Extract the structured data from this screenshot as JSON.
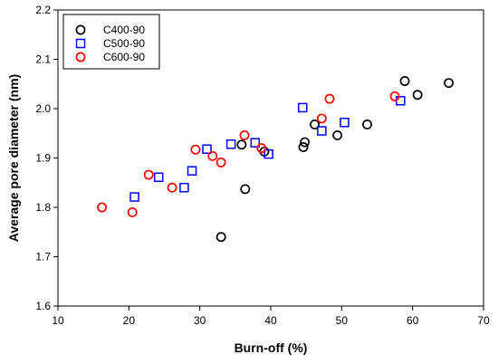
{
  "chart_data": {
    "type": "scatter",
    "title": "",
    "xlabel": "Burn-off (%)",
    "ylabel": "Average pore diameter (nm)",
    "xlim": [
      10,
      70
    ],
    "ylim": [
      1.6,
      2.2
    ],
    "xticks": [
      "10",
      "20",
      "30",
      "40",
      "50",
      "60",
      "70"
    ],
    "yticks": [
      "1.6",
      "1.7",
      "1.8",
      "1.9",
      "2.0",
      "2.1",
      "2.2"
    ],
    "grid": false,
    "legend_position": "top-left",
    "series": [
      {
        "name": "C400-90",
        "marker": "circle",
        "color": "#000000",
        "points": [
          {
            "x": 33.0,
            "y": 1.74
          },
          {
            "x": 35.9,
            "y": 1.927
          },
          {
            "x": 36.4,
            "y": 1.837
          },
          {
            "x": 39.1,
            "y": 1.913
          },
          {
            "x": 44.6,
            "y": 1.922
          },
          {
            "x": 44.8,
            "y": 1.932
          },
          {
            "x": 46.2,
            "y": 1.968
          },
          {
            "x": 49.4,
            "y": 1.946
          },
          {
            "x": 53.6,
            "y": 1.968
          },
          {
            "x": 58.9,
            "y": 2.056
          },
          {
            "x": 60.7,
            "y": 2.028
          },
          {
            "x": 65.1,
            "y": 2.052
          }
        ]
      },
      {
        "name": "C500-90",
        "marker": "square",
        "color": "#0000ff",
        "points": [
          {
            "x": 20.8,
            "y": 1.821
          },
          {
            "x": 24.2,
            "y": 1.861
          },
          {
            "x": 27.8,
            "y": 1.84
          },
          {
            "x": 28.9,
            "y": 1.874
          },
          {
            "x": 31.0,
            "y": 1.918
          },
          {
            "x": 34.4,
            "y": 1.928
          },
          {
            "x": 37.8,
            "y": 1.931
          },
          {
            "x": 39.7,
            "y": 1.908
          },
          {
            "x": 44.5,
            "y": 2.002
          },
          {
            "x": 47.2,
            "y": 1.955
          },
          {
            "x": 50.4,
            "y": 1.972
          },
          {
            "x": 58.3,
            "y": 2.016
          }
        ]
      },
      {
        "name": "C600-90",
        "marker": "circle",
        "color": "#ff0000",
        "points": [
          {
            "x": 16.2,
            "y": 1.8
          },
          {
            "x": 20.5,
            "y": 1.79
          },
          {
            "x": 22.8,
            "y": 1.866
          },
          {
            "x": 26.1,
            "y": 1.84
          },
          {
            "x": 29.4,
            "y": 1.917
          },
          {
            "x": 31.8,
            "y": 1.904
          },
          {
            "x": 33.0,
            "y": 1.891
          },
          {
            "x": 36.3,
            "y": 1.946
          },
          {
            "x": 38.7,
            "y": 1.92
          },
          {
            "x": 47.2,
            "y": 1.98
          },
          {
            "x": 48.3,
            "y": 2.02
          },
          {
            "x": 57.5,
            "y": 2.025
          }
        ]
      }
    ]
  }
}
